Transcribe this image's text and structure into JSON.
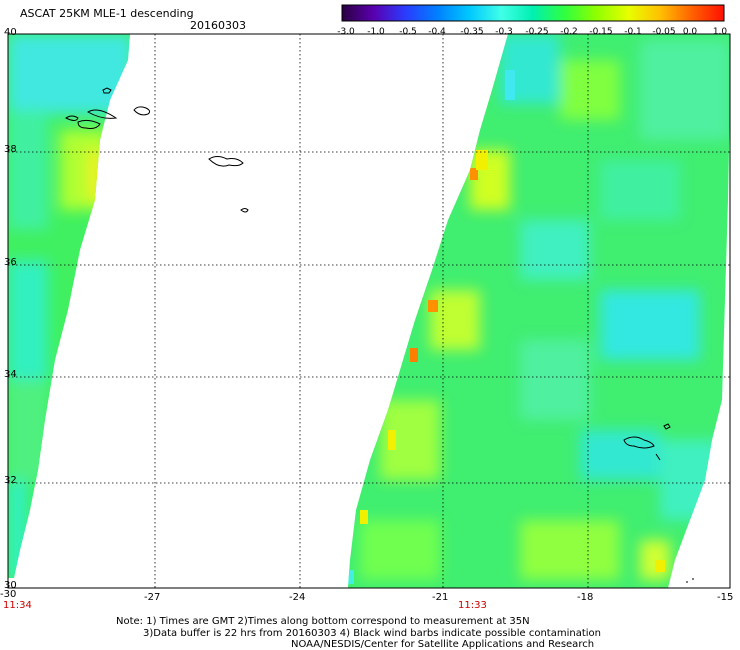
{
  "header": {
    "title": "ASCAT 25KM MLE-1 descending",
    "date": "20160303"
  },
  "colorbar": {
    "labels": [
      "-3.0",
      "-1.0",
      "-0.5",
      "-0.4",
      "-0.35",
      "-0.3",
      "-0.25",
      "-0.2",
      "-0.15",
      "-0.1",
      "-0.05",
      "0.0",
      "1.0"
    ],
    "colors": [
      "#2a0040",
      "#5a00b0",
      "#2a3cff",
      "#0080ff",
      "#00c8ff",
      "#40ffe8",
      "#00f0b0",
      "#30ff40",
      "#90ff00",
      "#e8ff00",
      "#ffc000",
      "#ff6000",
      "#ff1000"
    ]
  },
  "axes": {
    "x_ticks": [
      "-30",
      "-27",
      "-24",
      "-21",
      "-18",
      "-15"
    ],
    "y_ticks": [
      "40",
      "38",
      "36",
      "34",
      "32",
      "30"
    ]
  },
  "times": {
    "left": "11:34",
    "right": "11:33"
  },
  "notes": {
    "line1": "Note: 1) Times are GMT 2)Times along bottom correspond to measurement at 35N",
    "line2": "3)Data buffer is 22 hrs from 20160303 4) Black wind barbs indicate possible contamination",
    "line3": "NOAA/NESDIS/Center for Satellite Applications and Research"
  }
}
